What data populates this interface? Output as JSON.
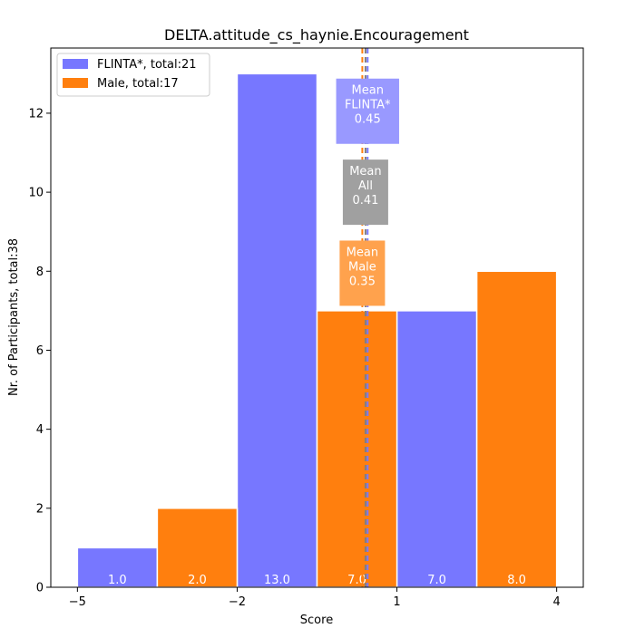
{
  "chart_data": {
    "type": "bar",
    "title": "DELTA.attitude_cs_haynie.Encouragement",
    "xlabel": "Score",
    "ylabel": "Nr. of Participants, total:38",
    "xlim": [
      -5.5,
      4.5
    ],
    "ylim": [
      0,
      13.65
    ],
    "xticks": [
      -5,
      -2,
      1,
      4
    ],
    "xtick_labels": [
      "−5",
      "−2",
      "1",
      "4"
    ],
    "yticks": [
      0,
      2,
      4,
      6,
      8,
      10,
      12
    ],
    "ytick_labels": [
      "0",
      "2",
      "4",
      "6",
      "8",
      "10",
      "12"
    ],
    "series": [
      {
        "name": "FLINTA*",
        "legend_label": "FLINTA*, total:21",
        "color": "#7777ff",
        "bars": [
          {
            "x0": -5.0,
            "x1": -3.5,
            "value": 1,
            "label": "1.0"
          },
          {
            "x0": -2.0,
            "x1": -0.5,
            "value": 13,
            "label": "13.0"
          },
          {
            "x0": 1.0,
            "x1": 2.5,
            "value": 7,
            "label": "7.0"
          }
        ]
      },
      {
        "name": "Male",
        "legend_label": "Male, total:17",
        "color": "#ff7f0e",
        "bars": [
          {
            "x0": -3.5,
            "x1": -2.0,
            "value": 2,
            "label": "2.0"
          },
          {
            "x0": -0.5,
            "x1": 1.0,
            "value": 7,
            "label": "7.0"
          },
          {
            "x0": 2.5,
            "x1": 4.0,
            "value": 8,
            "label": "8.0"
          }
        ]
      }
    ],
    "mean_lines": [
      {
        "name": "FLINTA*",
        "value": 0.45,
        "color": "#7777ff",
        "lines": [
          "Mean",
          "FLINTA*",
          "0.45"
        ],
        "box_color": "#9999ff",
        "box_center_y": 12.05
      },
      {
        "name": "All",
        "value": 0.41,
        "color": "#808080",
        "lines": [
          "Mean",
          "All",
          "0.41"
        ],
        "box_color": "#a0a0a0",
        "box_center_y": 10.0
      },
      {
        "name": "Male",
        "value": 0.35,
        "color": "#ff7f0e",
        "lines": [
          "Mean",
          "Male",
          "0.35"
        ],
        "box_color": "#ffa24d",
        "box_center_y": 7.95
      }
    ],
    "legend_position": "top-left",
    "grid": false
  }
}
